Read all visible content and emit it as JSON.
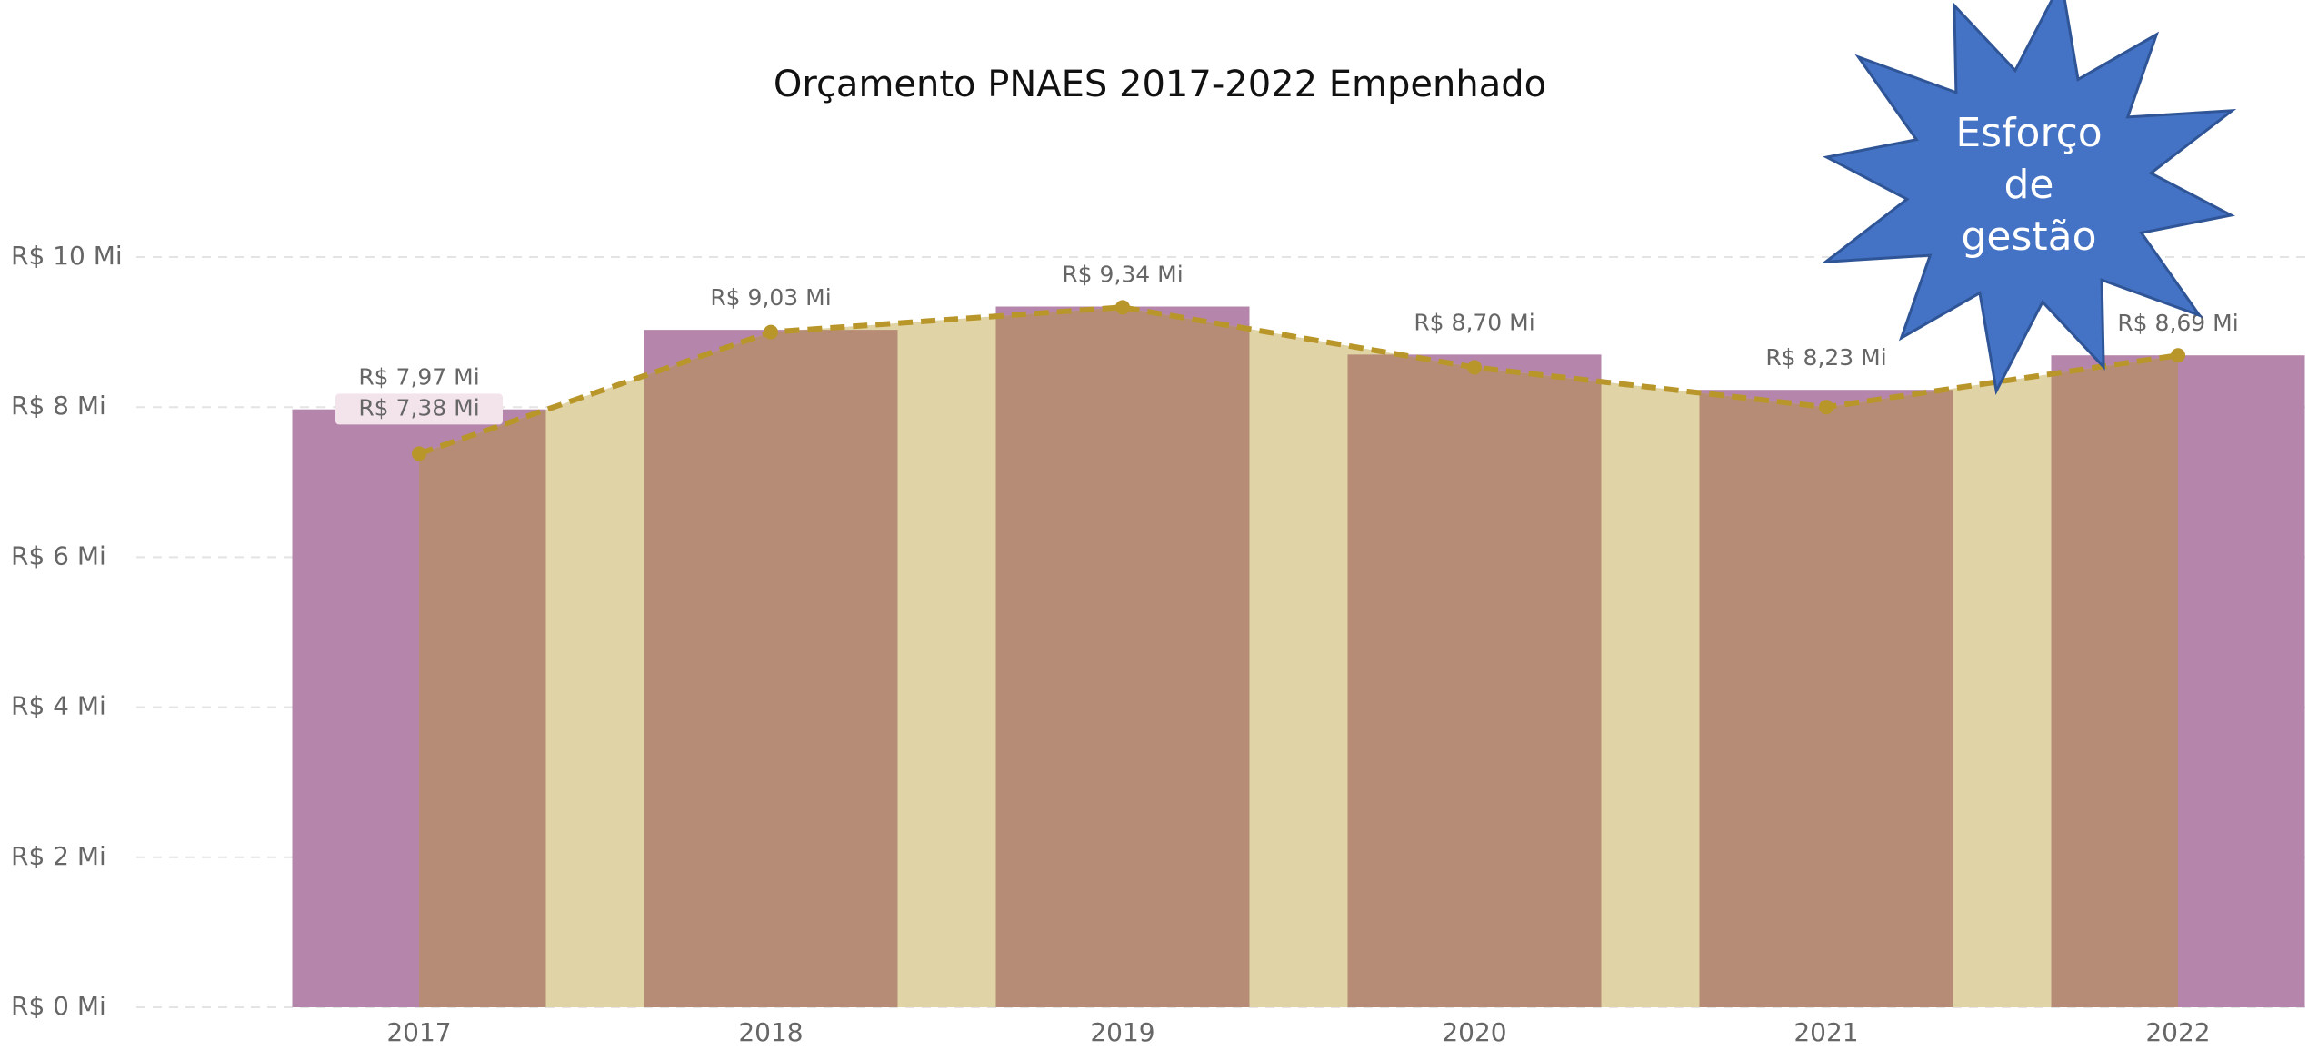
{
  "chart_data": {
    "type": "bar_line",
    "title": "Orçamento PNAES 2017-2022 Empenhado",
    "categories": [
      "2017",
      "2018",
      "2019",
      "2020",
      "2021",
      "2022"
    ],
    "series": [
      {
        "type": "bar",
        "color": "#b585ab",
        "values": [
          7.97,
          9.03,
          9.34,
          8.7,
          8.23,
          8.69
        ],
        "value_labels": [
          "R$ 7,97 Mi",
          "R$ 9,03 Mi",
          "R$ 9,34 Mi",
          "R$ 8,70 Mi",
          "R$ 8,23 Mi",
          "R$ 8,69 Mi"
        ]
      },
      {
        "type": "line",
        "color": "#b8962a",
        "area_color": "#e0d3a5",
        "overlap_color": "#b68c76",
        "values": [
          7.38,
          9.0,
          9.33,
          8.53,
          8.0,
          8.69
        ],
        "value_labels": [
          "R$ 7,38 Mi",
          null,
          null,
          null,
          null,
          null
        ]
      }
    ],
    "ylim": [
      0,
      10
    ],
    "yticks": [
      {
        "value": 0,
        "label": "R$ 0 Mi"
      },
      {
        "value": 2,
        "label": "R$ 2 Mi"
      },
      {
        "value": 4,
        "label": "R$ 4 Mi"
      },
      {
        "value": 6,
        "label": "R$ 6 Mi"
      },
      {
        "value": 8,
        "label": "R$ 8 Mi"
      },
      {
        "value": 10,
        "label": "R$ 10 Mi"
      }
    ],
    "grid": true,
    "annotation": {
      "lines": [
        "Esforço",
        "de",
        "gestão"
      ],
      "color": "#4472c4"
    }
  }
}
